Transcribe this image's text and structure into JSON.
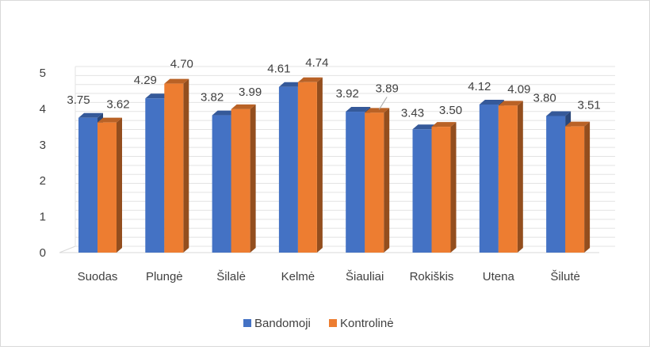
{
  "chart_data": {
    "type": "bar",
    "categories": [
      "Suodas",
      "Plungė",
      "Šilalė",
      "Kelmė",
      "Šiauliai",
      "Rokiškis",
      "Utena",
      "Šilutė"
    ],
    "series": [
      {
        "name": "Bandomoji",
        "values": [
          3.75,
          4.29,
          3.82,
          4.61,
          3.92,
          3.43,
          4.12,
          3.8
        ],
        "labels": [
          "3.75",
          "4.29",
          "3.82",
          "4.61",
          "3.92",
          "3.43",
          "4.12",
          "3.80"
        ],
        "color": "#4472c4"
      },
      {
        "name": "Kontrolinė",
        "values": [
          3.62,
          4.7,
          3.99,
          4.74,
          3.89,
          3.5,
          4.09,
          3.51
        ],
        "labels": [
          "3.62",
          "4.70",
          "3.99",
          "4.74",
          "3.89",
          "3.50",
          "4.09",
          "3.51"
        ],
        "color": "#ed7d31"
      }
    ],
    "yticks": [
      "0",
      "1",
      "2",
      "3",
      "4",
      "5"
    ],
    "ylim": [
      0,
      5
    ],
    "grid": true,
    "three_d": true,
    "legend_position": "bottom"
  }
}
